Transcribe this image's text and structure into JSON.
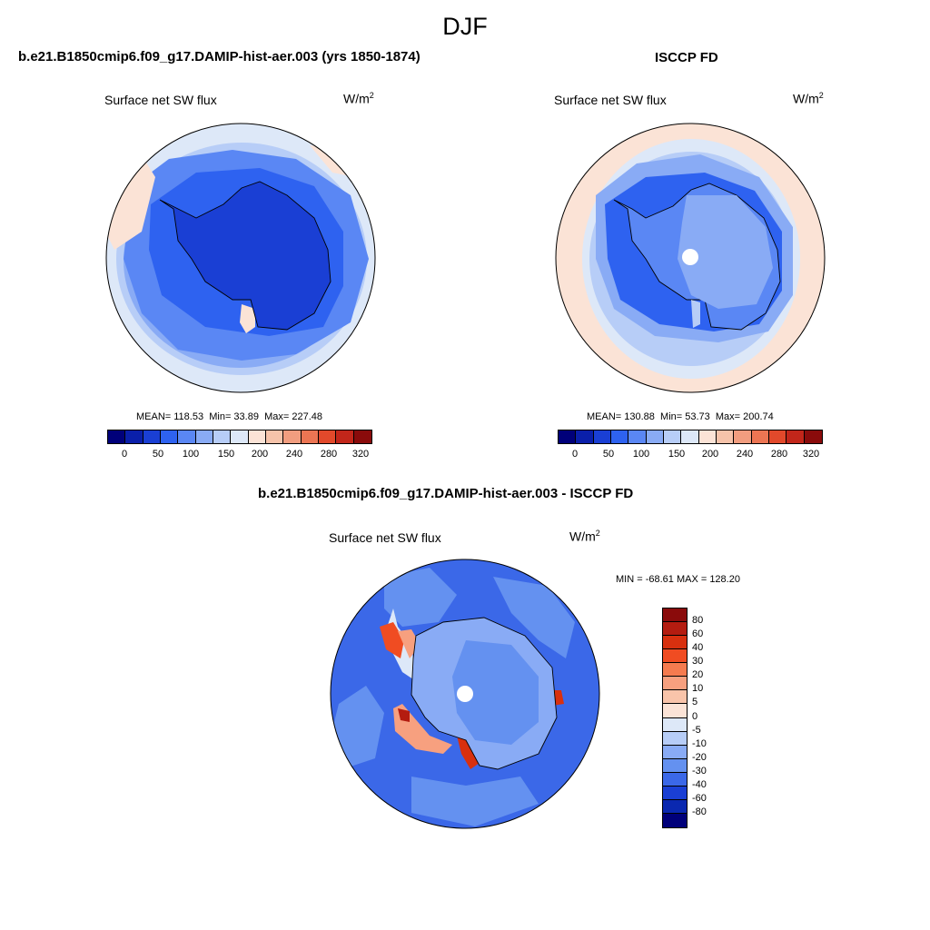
{
  "main_title": "DJF",
  "colors": {
    "abs_levels": [
      "#00007a",
      "#0a1faa",
      "#1a3fd4",
      "#2e62f0",
      "#5a87f4",
      "#89abf5",
      "#b7cdf7",
      "#dde8f8",
      "#fbe3d6",
      "#f6c3aa",
      "#f19d7f",
      "#ec7553",
      "#e2492b",
      "#c2261a",
      "#8a0b0b"
    ],
    "diff_levels": [
      "#8a0b0b",
      "#b41c10",
      "#d8300f",
      "#f04c22",
      "#f57b4f",
      "#f7a07f",
      "#f9c4aa",
      "#fbe3d6",
      "#dde8f8",
      "#b7cdf7",
      "#89abf5",
      "#6491f0",
      "#3b68e8",
      "#1a3fd4",
      "#0a28b0",
      "#00007a"
    ]
  },
  "panels": {
    "model": {
      "title": "b.e21.B1850cmip6.f09_g17.DAMIP-hist-aer.003 (yrs 1850-1874)",
      "var": "Surface net SW flux",
      "units": "W/m",
      "units_sup": "2",
      "mean": "MEAN= 118.53",
      "min": "Min=  33.89",
      "max": "Max= 227.48"
    },
    "obs": {
      "title": "ISCCP FD",
      "var": "Surface net SW flux",
      "units": "W/m",
      "units_sup": "2",
      "mean": "MEAN= 130.88",
      "min": "Min=  53.73",
      "max": "Max= 200.74"
    },
    "diff": {
      "title": "b.e21.B1850cmip6.f09_g17.DAMIP-hist-aer.003 - ISCCP FD",
      "var": "Surface net SW flux",
      "units": "W/m",
      "units_sup": "2",
      "minmax": "MIN = -68.61 MAX = 128.20"
    }
  },
  "chart_data": [
    {
      "type": "heatmap",
      "projection": "south polar stereographic",
      "season": "DJF",
      "title": "b.e21.B1850cmip6.f09_g17.DAMIP-hist-aer.003 (yrs 1850-1874)",
      "variable": "Surface net SW flux",
      "units": "W/m2",
      "stats": {
        "mean": 118.53,
        "min": 33.89,
        "max": 227.48
      },
      "colorbar_ticks": [
        "0",
        "50",
        "100",
        "150",
        "200",
        "240",
        "280",
        "320"
      ],
      "colorbar_bins": 15
    },
    {
      "type": "heatmap",
      "projection": "south polar stereographic",
      "season": "DJF",
      "title": "ISCCP FD",
      "variable": "Surface net SW flux",
      "units": "W/m2",
      "stats": {
        "mean": 130.88,
        "min": 53.73,
        "max": 200.74
      },
      "colorbar_ticks": [
        "0",
        "50",
        "100",
        "150",
        "200",
        "240",
        "280",
        "320"
      ],
      "colorbar_bins": 15
    },
    {
      "type": "heatmap",
      "projection": "south polar stereographic",
      "season": "DJF",
      "title": "b.e21.B1850cmip6.f09_g17.DAMIP-hist-aer.003 - ISCCP FD",
      "variable": "Surface net SW flux",
      "units": "W/m2",
      "stats": {
        "min": -68.61,
        "max": 128.2
      },
      "colorbar_ticks": [
        "80",
        "60",
        "40",
        "30",
        "20",
        "10",
        "5",
        "0",
        "-5",
        "-10",
        "-20",
        "-30",
        "-40",
        "-60",
        "-80"
      ],
      "colorbar_bins": 16
    }
  ]
}
